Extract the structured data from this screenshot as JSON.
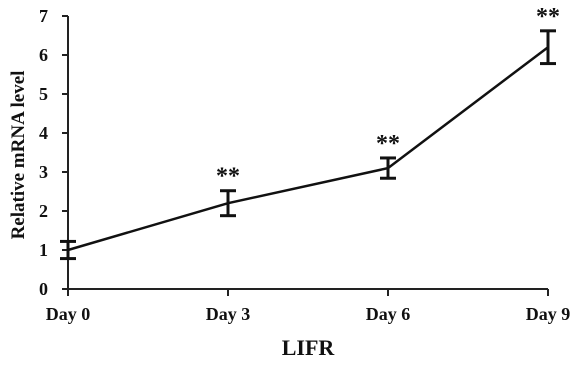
{
  "chart_data": {
    "type": "line",
    "title": "",
    "xlabel": "LIFR",
    "ylabel": "Relative mRNA level",
    "categories": [
      "Day 0",
      "Day 3",
      "Day 6",
      "Day 9"
    ],
    "series": [
      {
        "values": [
          1.0,
          2.2,
          3.1,
          6.2
        ],
        "error": [
          0.22,
          0.32,
          0.26,
          0.42
        ],
        "color": "#111111"
      }
    ],
    "annotations": [
      "",
      "**",
      "**",
      "**"
    ],
    "ylim": [
      0,
      7
    ],
    "yticks": [
      0,
      1,
      2,
      3,
      4,
      5,
      6,
      7
    ],
    "grid": false,
    "legend": "none"
  }
}
